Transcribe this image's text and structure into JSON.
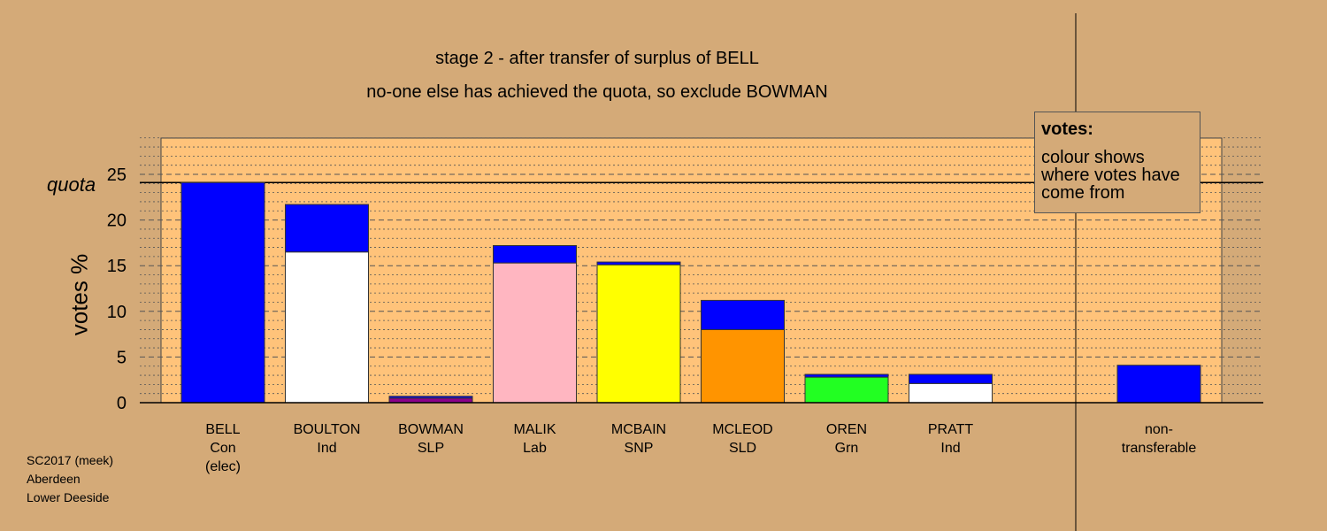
{
  "header": {
    "title": "stage 2 - after transfer of surplus of BELL",
    "subtitle": "no-one else has achieved the quota, so exclude BOWMAN"
  },
  "legend": {
    "title": "votes:",
    "text": "colour shows where votes have come from"
  },
  "source": {
    "line1": "SC2017 (meek)",
    "line2": "Aberdeen",
    "line3": "Lower Deeside"
  },
  "colors": {
    "background": "#d4aa78",
    "plot_area": "#ffc37a",
    "transfer_from_bell": "#0000ff"
  },
  "chart_data": {
    "type": "bar",
    "stacked": true,
    "ylabel": "votes %",
    "ylim": [
      0,
      29.5
    ],
    "yticks": [
      0,
      5,
      10,
      15,
      20,
      25
    ],
    "quota": 24.1,
    "quota_label": "quota",
    "grid": true,
    "candidates": [
      {
        "name": "BELL",
        "party": "Con",
        "note": "(elec)",
        "own": 24.1,
        "own_color": "#0000ff",
        "transfer": 0
      },
      {
        "name": "BOULTON",
        "party": "Ind",
        "note": "",
        "own": 16.5,
        "own_color": "#ffffff",
        "transfer": 5.2
      },
      {
        "name": "BOWMAN",
        "party": "SLP",
        "note": "",
        "own": 0.5,
        "own_color": "#8b008b",
        "transfer": 0.2
      },
      {
        "name": "MALIK",
        "party": "Lab",
        "note": "",
        "own": 15.3,
        "own_color": "#ffb6c1",
        "transfer": 1.9
      },
      {
        "name": "MCBAIN",
        "party": "SNP",
        "note": "",
        "own": 15.1,
        "own_color": "#ffff00",
        "transfer": 0.3
      },
      {
        "name": "MCLEOD",
        "party": "SLD",
        "note": "",
        "own": 8.0,
        "own_color": "#ff9400",
        "transfer": 3.2
      },
      {
        "name": "OREN",
        "party": "Grn",
        "note": "",
        "own": 2.8,
        "own_color": "#22ff22",
        "transfer": 0.3
      },
      {
        "name": "PRATT",
        "party": "Ind",
        "note": "",
        "own": 2.1,
        "own_color": "#ffffff",
        "transfer": 1.0
      }
    ],
    "non_transferable": {
      "label1": "non-",
      "label2": "transferable",
      "value": 4.1,
      "color": "#0000ff"
    }
  }
}
